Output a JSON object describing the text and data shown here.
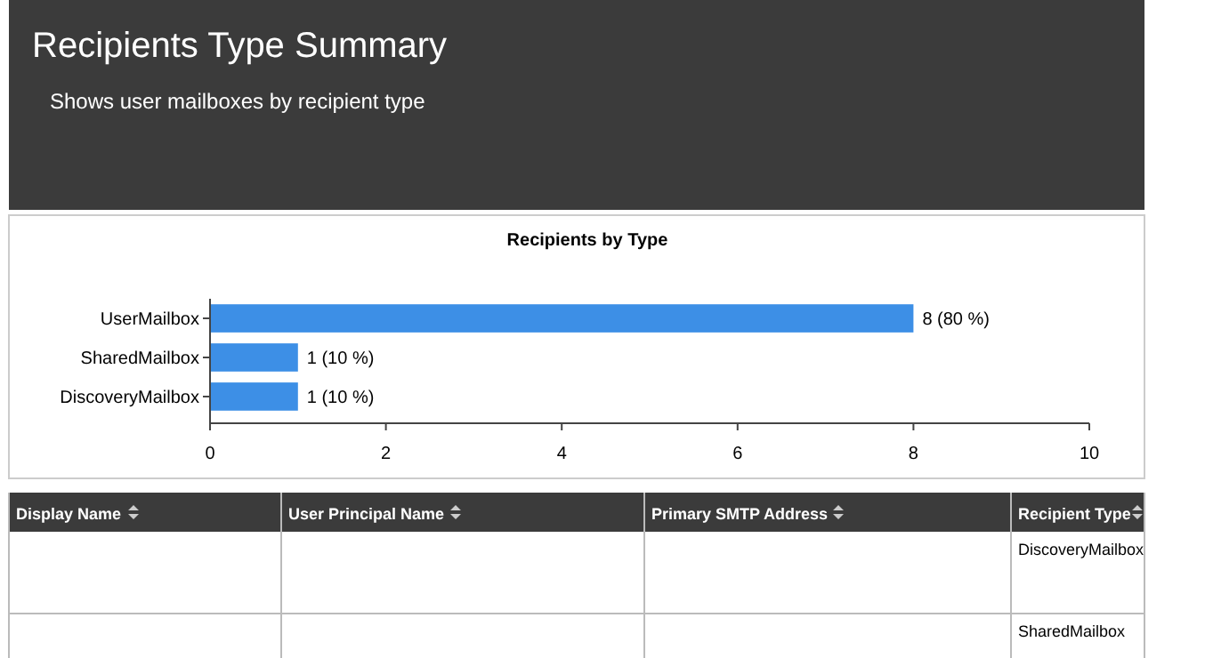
{
  "chart_data": {
    "type": "bar",
    "orientation": "horizontal",
    "title": "Recipients Type Summary",
    "subtitle": "Shows user mailboxes by recipient type",
    "categories": [
      "UserMailbox",
      "SharedMailbox",
      "DiscoveryMailbox"
    ],
    "values": [
      8,
      1,
      1
    ],
    "value_labels": [
      "8 (80 %)",
      "1 (10 %)",
      "1 (10 %)"
    ],
    "color": "#3d8fe6",
    "xlim": [
      0,
      10
    ],
    "xticks": [
      0,
      2,
      4,
      6,
      8,
      10
    ],
    "grid": false,
    "annotations": [
      "Recipients by Type",
      "Display Name",
      "User Principal Name",
      "Primary SMTP Address",
      "Recipient Type",
      "DiscoveryMailbox",
      "SharedMailbox"
    ]
  }
}
